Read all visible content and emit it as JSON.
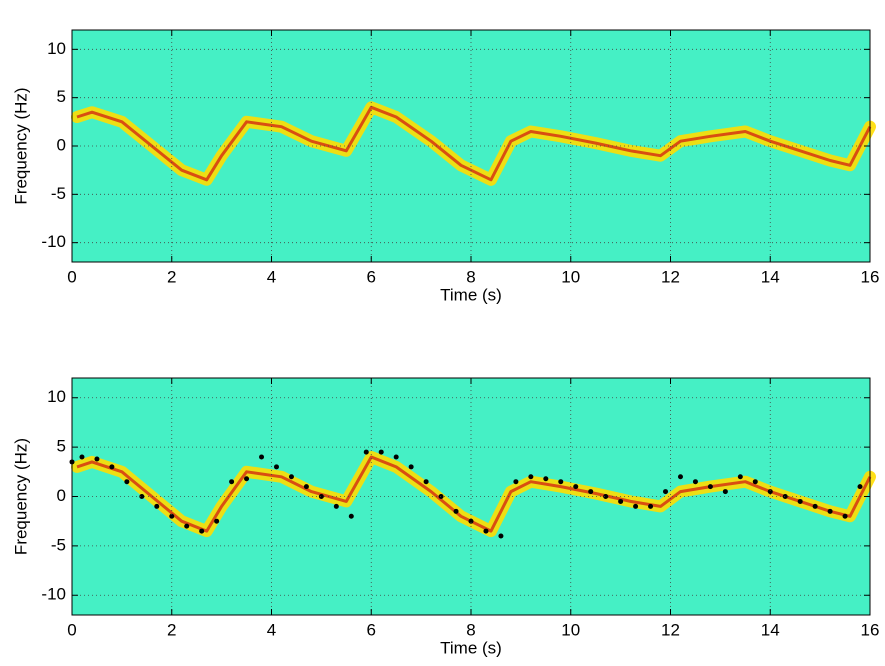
{
  "chart_data": [
    {
      "type": "line",
      "xlabel": "Time (s)",
      "ylabel": "Frequency (Hz)",
      "background": "#45f0c5",
      "color": "#ffdd00",
      "edge_color": "#d01010",
      "x": [
        0.1,
        0.4,
        1.0,
        1.6,
        2.2,
        2.7,
        3.0,
        3.5,
        4.2,
        4.8,
        5.5,
        6.0,
        6.5,
        7.2,
        7.8,
        8.4,
        8.8,
        9.2,
        9.8,
        10.5,
        11.2,
        11.8,
        12.2,
        12.8,
        13.5,
        14.0,
        14.6,
        15.2,
        15.6,
        16.0
      ],
      "values": [
        3.0,
        3.5,
        2.5,
        0.0,
        -2.5,
        -3.5,
        -1.0,
        2.5,
        2.0,
        0.5,
        -0.5,
        4.0,
        3.0,
        0.5,
        -2.0,
        -3.5,
        0.5,
        1.5,
        1.0,
        0.3,
        -0.5,
        -1.0,
        0.5,
        1.0,
        1.5,
        0.5,
        -0.5,
        -1.5,
        -2.0,
        2.0
      ],
      "xlim": [
        0,
        16
      ],
      "ylim": [
        -12,
        12
      ],
      "xticks": [
        0,
        2,
        4,
        6,
        8,
        10,
        12,
        14,
        16
      ],
      "yticks": [
        -10,
        -5,
        0,
        5,
        10
      ],
      "grid": true
    },
    {
      "type": "line",
      "xlabel": "Time (s)",
      "ylabel": "Frequency (Hz)",
      "background": "#45f0c5",
      "color": "#ffdd00",
      "edge_color": "#d01010",
      "ridge_color": "#000000",
      "x": [
        0.1,
        0.4,
        1.0,
        1.6,
        2.2,
        2.7,
        3.0,
        3.5,
        4.2,
        4.8,
        5.5,
        6.0,
        6.5,
        7.2,
        7.8,
        8.4,
        8.8,
        9.2,
        9.8,
        10.5,
        11.2,
        11.8,
        12.2,
        12.8,
        13.5,
        14.0,
        14.6,
        15.2,
        15.6,
        16.0
      ],
      "values": [
        3.0,
        3.5,
        2.5,
        0.0,
        -2.5,
        -3.5,
        -1.0,
        2.5,
        2.0,
        0.5,
        -0.5,
        4.0,
        3.0,
        0.5,
        -2.0,
        -3.5,
        0.5,
        1.5,
        1.0,
        0.3,
        -0.5,
        -1.0,
        0.5,
        1.0,
        1.5,
        0.5,
        -0.5,
        -1.5,
        -2.0,
        2.0
      ],
      "ridge_x": [
        0.0,
        0.2,
        0.5,
        0.8,
        1.1,
        1.4,
        1.7,
        2.0,
        2.3,
        2.6,
        2.9,
        3.2,
        3.5,
        3.8,
        4.1,
        4.4,
        4.7,
        5.0,
        5.3,
        5.6,
        5.9,
        6.2,
        6.5,
        6.8,
        7.1,
        7.4,
        7.7,
        8.0,
        8.3,
        8.6,
        8.9,
        9.2,
        9.5,
        9.8,
        10.1,
        10.4,
        10.7,
        11.0,
        11.3,
        11.6,
        11.9,
        12.2,
        12.5,
        12.8,
        13.1,
        13.4,
        13.7,
        14.0,
        14.3,
        14.6,
        14.9,
        15.2,
        15.5,
        15.8
      ],
      "ridge_values": [
        3.5,
        4.0,
        3.8,
        3.0,
        1.5,
        0.0,
        -1.0,
        -2.0,
        -3.0,
        -3.5,
        -2.5,
        1.5,
        1.8,
        4.0,
        3.0,
        2.0,
        1.0,
        0.0,
        -1.0,
        -2.0,
        4.5,
        4.5,
        4.0,
        3.0,
        1.5,
        0.0,
        -1.5,
        -2.5,
        -3.5,
        -4.0,
        1.5,
        2.0,
        1.8,
        1.5,
        1.0,
        0.5,
        0.0,
        -0.5,
        -1.0,
        -1.0,
        0.5,
        2.0,
        1.5,
        1.0,
        0.5,
        2.0,
        1.5,
        0.5,
        0.0,
        -0.5,
        -1.0,
        -1.5,
        -2.0,
        1.0
      ],
      "xlim": [
        0,
        16
      ],
      "ylim": [
        -12,
        12
      ],
      "xticks": [
        0,
        2,
        4,
        6,
        8,
        10,
        12,
        14,
        16
      ],
      "yticks": [
        -10,
        -5,
        0,
        5,
        10
      ],
      "grid": true
    }
  ]
}
